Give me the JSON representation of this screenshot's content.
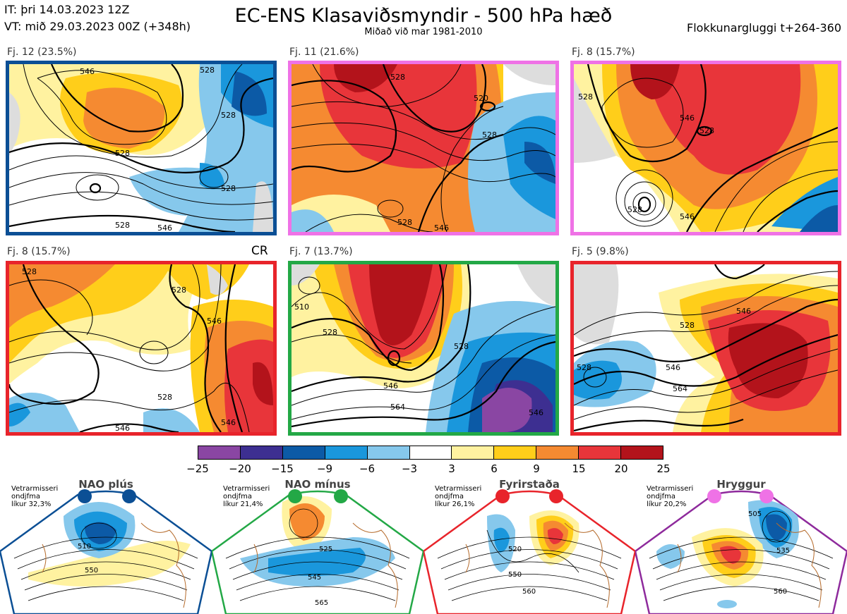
{
  "header": {
    "init_time": "IT: þri 14.03.2023 12Z",
    "valid_time": "VT: mið 29.03.2023 00Z  (+348h)",
    "title": "EC-ENS Klasaviðsmyndir - 500 hPa hæð",
    "subtitle": "Miðað við mar 1981-2010",
    "window": "Flokkunargluggi t+264-360"
  },
  "clusters": [
    {
      "label": "Fj. 12 (23.5%)",
      "border_color": "#0b4f95"
    },
    {
      "label": "Fj. 11 (21.6%)",
      "border_color": "#ef72e6"
    },
    {
      "label": "Fj. 8 (15.7%)",
      "border_color": "#ef72e6"
    },
    {
      "label": "Fj. 8 (15.7%)",
      "border_color": "#e8242b",
      "tag": "CR"
    },
    {
      "label": "Fj. 7 (13.7%)",
      "border_color": "#23a846"
    },
    {
      "label": "Fj. 5 (9.8%)",
      "border_color": "#e8242b"
    }
  ],
  "contour_labels": {
    "c1": [
      "528",
      "546",
      "528",
      "528",
      "528",
      "546",
      "528"
    ],
    "c2": [
      "528",
      "520",
      "528",
      "528",
      "546"
    ],
    "c3": [
      "528",
      "546",
      "528",
      "528",
      "546"
    ],
    "c4": [
      "528",
      "546",
      "528",
      "528",
      "546",
      "546"
    ],
    "c5": [
      "510",
      "528",
      "528",
      "546",
      "564",
      "546"
    ],
    "c6": [
      "528",
      "546",
      "528",
      "546",
      "564"
    ]
  },
  "colorbar": {
    "ticks": [
      "−25",
      "−20",
      "−15",
      "−9",
      "−6",
      "−3",
      "3",
      "6",
      "9",
      "15",
      "20",
      "25"
    ],
    "colors": [
      "#8a46a3",
      "#3d2f91",
      "#0c5aa6",
      "#1a97dc",
      "#86c8ec",
      "#ffffff",
      "#fff2a0",
      "#ffce1a",
      "#f58a31",
      "#e8353a",
      "#b3131b"
    ]
  },
  "regimes": [
    {
      "name": "NAO plús",
      "note": [
        "Vetrarmisseri",
        "ondjfma",
        "líkur 32,3%"
      ],
      "color": "#0b4f95",
      "contours": [
        "510",
        "550"
      ]
    },
    {
      "name": "NAO mínus",
      "note": [
        "Vetrarmisseri",
        "ondjfma",
        "líkur 21,4%"
      ],
      "color": "#23a846",
      "contours": [
        "525",
        "545",
        "565"
      ]
    },
    {
      "name": "Fyrirstaða",
      "note": [
        "Vetrarmisseri",
        "ondjfma",
        "líkur 26,1%"
      ],
      "color": "#e8242b",
      "contours": [
        "520",
        "550",
        "560"
      ]
    },
    {
      "name": "Hryggur",
      "note": [
        "Vetrarmisseri",
        "ondjfma",
        "líkur 20,2%"
      ],
      "color": "#8e2a9c",
      "contours": [
        "505",
        "535",
        "560"
      ]
    }
  ]
}
